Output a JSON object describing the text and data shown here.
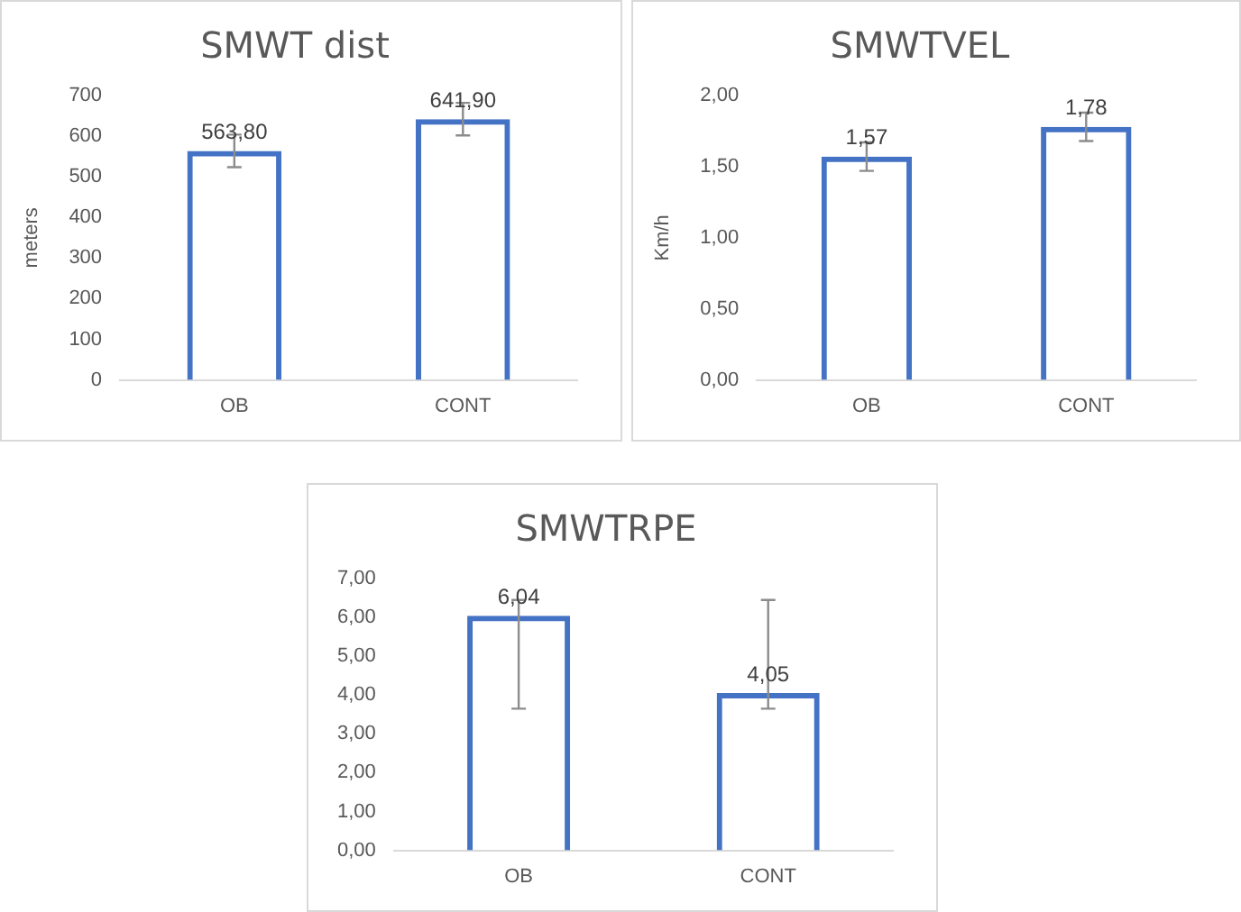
{
  "chart_data": [
    {
      "type": "bar",
      "title": "SMWT dist",
      "ylabel": "meters",
      "categories": [
        "OB",
        "CONT"
      ],
      "values": [
        563.8,
        641.9
      ],
      "color": "#4472c4",
      "errors": [
        40,
        40
      ],
      "value_labels": [
        "563,80",
        "641,90"
      ],
      "ylim": [
        0,
        700
      ],
      "yticks": [
        0,
        100,
        200,
        300,
        400,
        500,
        600,
        700
      ],
      "grid": false,
      "legend": false
    },
    {
      "type": "bar",
      "title": "SMWTVEL",
      "ylabel": "Km/h",
      "categories": [
        "OB",
        "CONT"
      ],
      "values": [
        1.57,
        1.78
      ],
      "color": "#4472c4",
      "errors": [
        0.1,
        0.1
      ],
      "value_labels": [
        "1,57",
        "1,78"
      ],
      "ylim": [
        0,
        2
      ],
      "yticks": [
        {
          "value": 0,
          "label": "0,00"
        },
        {
          "value": 0.5,
          "label": "0,50"
        },
        {
          "value": 1,
          "label": "1,00"
        },
        {
          "value": 1.5,
          "label": "1,50"
        },
        {
          "value": 2,
          "label": "2,00"
        }
      ],
      "grid": false,
      "legend": false
    },
    {
      "type": "bar",
      "title": "SMWTRPE",
      "categories": [
        "OB",
        "CONT"
      ],
      "values": [
        6.04,
        4.05
      ],
      "color": "#4472c4",
      "errors": [
        [
          3.65,
          6.45
        ],
        [
          3.65,
          6.45
        ]
      ],
      "value_labels": [
        "6,04",
        "4,05"
      ],
      "ylim": [
        0,
        7
      ],
      "yticks": [
        {
          "value": 0,
          "label": "0,00"
        },
        {
          "value": 1,
          "label": "1,00"
        },
        {
          "value": 2,
          "label": "2,00"
        },
        {
          "value": 3,
          "label": "3,00"
        },
        {
          "value": 4,
          "label": "4,00"
        },
        {
          "value": 5,
          "label": "5,00"
        },
        {
          "value": 6,
          "label": "6,00"
        },
        {
          "value": 7,
          "label": "7,00"
        }
      ],
      "grid": false,
      "legend": false
    }
  ]
}
